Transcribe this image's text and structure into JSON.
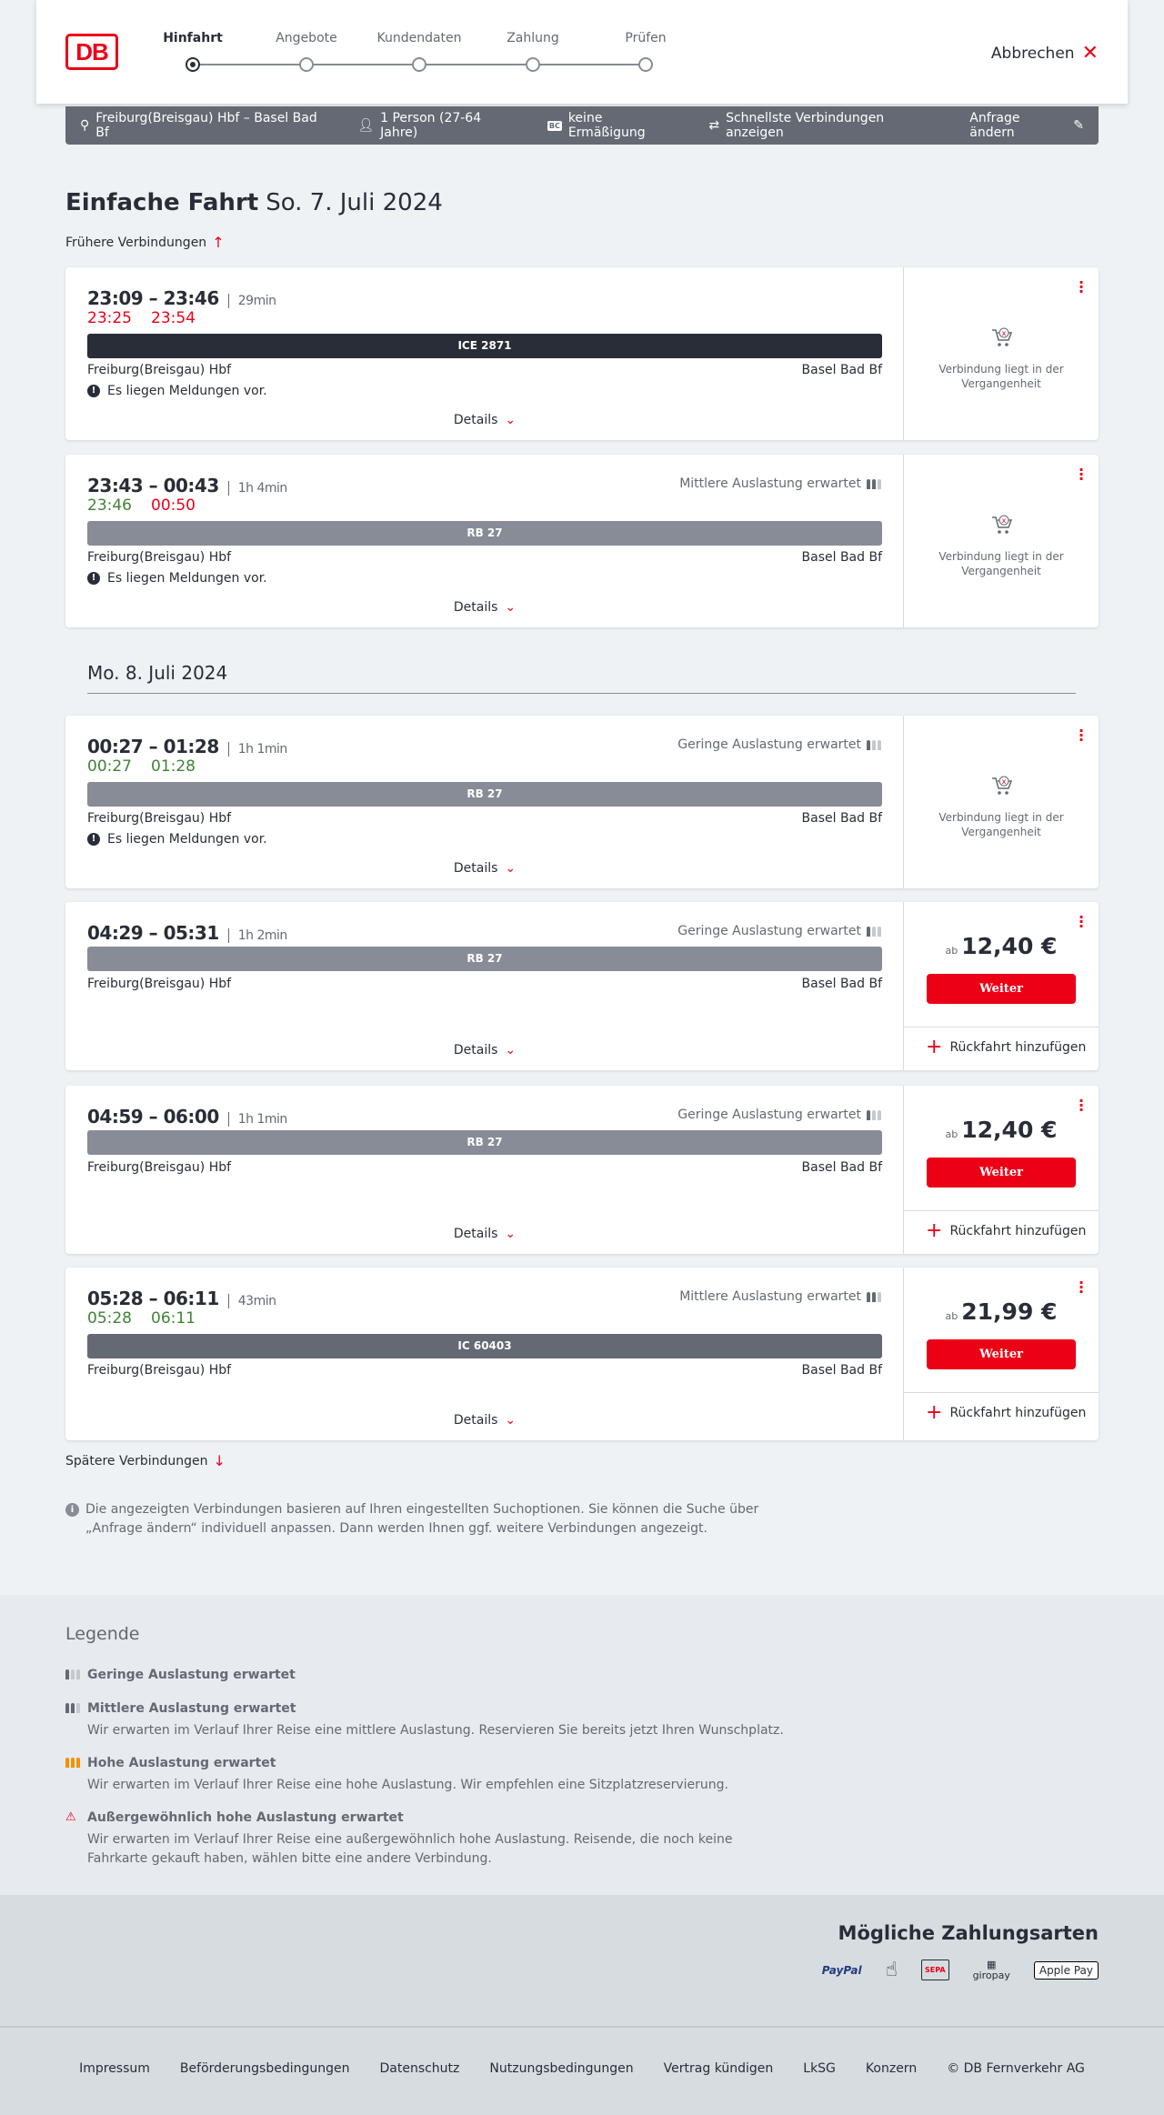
{
  "header": {
    "logo": "DB",
    "steps": [
      "Hinfahrt",
      "Angebote",
      "Kundendaten",
      "Zahlung",
      "Prüfen"
    ],
    "active_step": 0,
    "cancel": "Abbrechen"
  },
  "filter": {
    "route": "Freiburg(Breisgau) Hbf – Basel Bad Bf",
    "persons": "1 Person (27-64 Jahre)",
    "discount": "keine Ermäßigung",
    "option": "Schnellste Verbindungen anzeigen",
    "edit": "Anfrage ändern"
  },
  "page": {
    "title": "Einfache Fahrt",
    "date": "So. 7. Juli 2024",
    "earlier": "Frühere Verbindungen",
    "day2": "Mo. 8. Juli 2024",
    "later": "Spätere Verbindungen",
    "info": "Die angezeigten Verbindungen basieren auf Ihren eingestellten Suchoptionen. Sie können die Suche über „Anfrage ändern“ individuell anpassen. Dann werden Ihnen ggf. weitere Verbindungen angezeigt."
  },
  "common": {
    "details": "Details",
    "past": "Verbindung liegt in der Vergangenheit",
    "message": "Es liegen Meldungen vor.",
    "weiter": "Weiter",
    "return": "Rückfahrt hinzufügen",
    "ab": "ab",
    "from": "Freiburg(Breisgau) Hbf",
    "to": "Basel Bad Bf"
  },
  "colors": {
    "accent": "#ec0016",
    "ice": "#282d37",
    "rb": "#878c96",
    "ic": "#646973",
    "ontime": "#408335",
    "delay": "#ec0016"
  },
  "connections": [
    {
      "time": "23:09 – 23:46",
      "duration": "29min",
      "rt_dep": "23:25",
      "rt_arr": "23:54",
      "rt_dep_status": "delay",
      "rt_arr_status": "delay",
      "train": "ICE 2871",
      "load": "",
      "message": true,
      "past": true
    },
    {
      "time": "23:43 – 00:43",
      "duration": "1h 4min",
      "rt_dep": "23:46",
      "rt_arr": "00:50",
      "rt_dep_status": "ontime",
      "rt_arr_status": "delay",
      "train": "RB 27",
      "load": "Mittlere Auslastung erwartet",
      "load_level": 2,
      "message": true,
      "past": true
    },
    {
      "time": "00:27 – 01:28",
      "duration": "1h 1min",
      "rt_dep": "00:27",
      "rt_arr": "01:28",
      "rt_dep_status": "ontime",
      "rt_arr_status": "ontime",
      "train": "RB 27",
      "load": "Geringe Auslastung erwartet",
      "load_level": 1,
      "message": true,
      "past": true
    },
    {
      "time": "04:29 – 05:31",
      "duration": "1h 2min",
      "train": "RB 27",
      "load": "Geringe Auslastung erwartet",
      "load_level": 1,
      "price": "12,40 €"
    },
    {
      "time": "04:59 – 06:00",
      "duration": "1h 1min",
      "train": "RB 27",
      "load": "Geringe Auslastung erwartet",
      "load_level": 1,
      "price": "12,40 €"
    },
    {
      "time": "05:28 – 06:11",
      "duration": "43min",
      "rt_dep": "05:28",
      "rt_arr": "06:11",
      "rt_dep_status": "ontime",
      "rt_arr_status": "ontime",
      "train": "IC 60403",
      "load": "Mittlere Auslastung erwartet",
      "load_level": 2,
      "price": "21,99 €"
    }
  ],
  "legend": {
    "title": "Legende",
    "items": [
      {
        "title": "Geringe Auslastung erwartet",
        "text": "",
        "level": 1
      },
      {
        "title": "Mittlere Auslastung erwartet",
        "text": "Wir erwarten im Verlauf Ihrer Reise eine mittlere Auslastung. Reservieren Sie bereits jetzt Ihren Wunschplatz.",
        "level": 2
      },
      {
        "title": "Hohe Auslastung erwartet",
        "text": "Wir erwarten im Verlauf Ihrer Reise eine hohe Auslastung. Wir empfehlen eine Sitzplatzreservierung.",
        "level": 3
      },
      {
        "title": "Außergewöhnlich hohe Auslastung erwartet",
        "text": "Wir erwarten im Verlauf Ihrer Reise eine außergewöhnlich hohe Auslastung. Reisende, die noch keine Fahrkarte gekauft haben, wählen bitte eine andere Verbindung.",
        "level": 4
      }
    ]
  },
  "payment": {
    "title": "Mögliche Zahlungsarten",
    "methods": [
      "PayPal",
      "Kreditkarte",
      "SEPA",
      "giropay",
      "Apple Pay"
    ]
  },
  "footer": [
    "Impressum",
    "Beförderungsbedingungen",
    "Datenschutz",
    "Nutzungsbedingungen",
    "Vertrag kündigen",
    "LkSG",
    "Konzern",
    "© DB Fernverkehr AG"
  ]
}
